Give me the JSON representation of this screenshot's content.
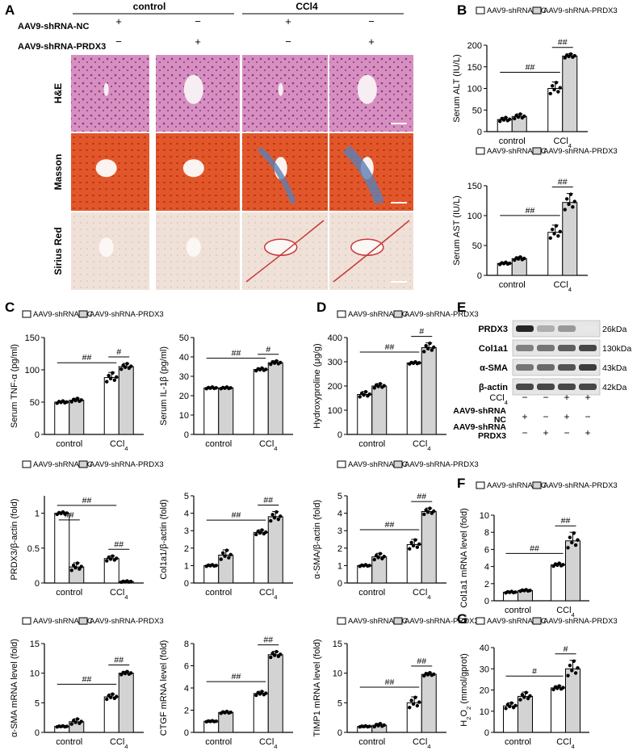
{
  "panel_letters": [
    "A",
    "B",
    "C",
    "D",
    "E",
    "F",
    "G"
  ],
  "panel_a": {
    "group_headers": [
      "control",
      "CCl4"
    ],
    "row1_label": "AAV9-shRNA-NC",
    "row2_label": "AAV9-shRNA-PRDX3",
    "row1_signs": [
      "+",
      "−",
      "+",
      "−"
    ],
    "row2_signs": [
      "−",
      "+",
      "−",
      "+"
    ],
    "stains": [
      "H&E",
      "Masson",
      "Sirius Red"
    ]
  },
  "legend": {
    "nc": "AAV9-shRNA-NC",
    "prdx3": "AAV9-shRNA-PRDX3"
  },
  "colors": {
    "nc": "#ffffff",
    "prdx3": "#d3d3d3",
    "sig": "#000000"
  },
  "chart_data": [
    {
      "id": "alt",
      "type": "bar",
      "ylabel": "Serum ALT (IU/L)",
      "categories": [
        "control",
        "CCl4"
      ],
      "ylim": [
        0,
        200
      ],
      "yticks": [
        0,
        50,
        100,
        150,
        200
      ],
      "series": [
        {
          "name": "AAV9-shRNA-NC",
          "values": [
            28,
            100
          ],
          "errors": [
            5,
            15
          ]
        },
        {
          "name": "AAV9-shRNA-PRDX3",
          "values": [
            35,
            175
          ],
          "errors": [
            6,
            5
          ]
        }
      ],
      "significance": [
        "##",
        "##"
      ]
    },
    {
      "id": "ast",
      "type": "bar",
      "ylabel": "Serum AST (IU/L)",
      "categories": [
        "control",
        "CCl4"
      ],
      "ylim": [
        0,
        150
      ],
      "yticks": [
        0,
        50,
        100,
        150
      ],
      "series": [
        {
          "name": "AAV9-shRNA-NC",
          "values": [
            20,
            72
          ],
          "errors": [
            2,
            12
          ]
        },
        {
          "name": "AAV9-shRNA-PRDX3",
          "values": [
            28,
            122
          ],
          "errors": [
            3,
            15
          ]
        }
      ],
      "significance": [
        "##",
        "##"
      ]
    },
    {
      "id": "tnf",
      "type": "bar",
      "ylabel": "Serum TNF-α (pg/ml)",
      "categories": [
        "control",
        "CCl4"
      ],
      "ylim": [
        0,
        150
      ],
      "yticks": [
        0,
        50,
        100,
        150
      ],
      "series": [
        {
          "name": "AAV9-shRNA-NC",
          "values": [
            50,
            88
          ],
          "errors": [
            2,
            8
          ]
        },
        {
          "name": "AAV9-shRNA-PRDX3",
          "values": [
            53,
            105
          ],
          "errors": [
            3,
            5
          ]
        }
      ],
      "significance": [
        "##",
        "#"
      ]
    },
    {
      "id": "il1b",
      "type": "bar",
      "ylabel": "Serum IL-1β (pg/ml)",
      "categories": [
        "control",
        "CCl4"
      ],
      "ylim": [
        0,
        50
      ],
      "yticks": [
        0,
        10,
        20,
        30,
        40,
        50
      ],
      "series": [
        {
          "name": "AAV9-shRNA-NC",
          "values": [
            24,
            33.5
          ],
          "errors": [
            0.5,
            0.8
          ]
        },
        {
          "name": "AAV9-shRNA-PRDX3",
          "values": [
            24,
            37
          ],
          "errors": [
            0.5,
            1
          ]
        }
      ],
      "significance": [
        "##",
        "#"
      ]
    },
    {
      "id": "hyp",
      "type": "bar",
      "ylabel": "Hydroxyproline (μg/g)",
      "categories": [
        "control",
        "CCl4"
      ],
      "ylim": [
        0,
        400
      ],
      "yticks": [
        0,
        100,
        200,
        300,
        400
      ],
      "series": [
        {
          "name": "AAV9-shRNA-NC",
          "values": [
            165,
            295
          ],
          "errors": [
            12,
            5
          ]
        },
        {
          "name": "AAV9-shRNA-PRDX3",
          "values": [
            200,
            358
          ],
          "errors": [
            10,
            20
          ]
        }
      ],
      "significance": [
        "##",
        "#"
      ]
    },
    {
      "id": "prdx3",
      "type": "bar",
      "ylabel": "PRDX3/β-actin (fold)",
      "categories": [
        "control",
        "CCl4"
      ],
      "ylim": [
        0,
        1.25
      ],
      "yticks": [
        0.0,
        0.5,
        1.0
      ],
      "series": [
        {
          "name": "AAV9-shRNA-NC",
          "values": [
            1.0,
            0.35
          ],
          "errors": [
            0.02,
            0.04
          ]
        },
        {
          "name": "AAV9-shRNA-PRDX3",
          "values": [
            0.23,
            0.02
          ],
          "errors": [
            0.06,
            0.01
          ]
        }
      ],
      "significance": [
        "##",
        "##",
        "##"
      ]
    },
    {
      "id": "col1a1",
      "type": "bar",
      "ylabel": "Col1a1/β-actin (fold)",
      "categories": [
        "control",
        "CCl4"
      ],
      "ylim": [
        0,
        5
      ],
      "yticks": [
        0,
        1,
        2,
        3,
        4,
        5
      ],
      "series": [
        {
          "name": "AAV9-shRNA-NC",
          "values": [
            1.0,
            2.9
          ],
          "errors": [
            0.05,
            0.15
          ]
        },
        {
          "name": "AAV9-shRNA-PRDX3",
          "values": [
            1.6,
            3.8
          ],
          "errors": [
            0.3,
            0.3
          ]
        }
      ],
      "significance": [
        "##",
        "##"
      ]
    },
    {
      "id": "asma",
      "type": "bar",
      "ylabel": "α-SMA/β-actin (fold)",
      "categories": [
        "control",
        "CCl4"
      ],
      "ylim": [
        0,
        5
      ],
      "yticks": [
        0,
        1,
        2,
        3,
        4,
        5
      ],
      "series": [
        {
          "name": "AAV9-shRNA-NC",
          "values": [
            1.0,
            2.2
          ],
          "errors": [
            0.05,
            0.3
          ]
        },
        {
          "name": "AAV9-shRNA-PRDX3",
          "values": [
            1.5,
            4.1
          ],
          "errors": [
            0.2,
            0.2
          ]
        }
      ],
      "significance": [
        "##",
        "##"
      ]
    },
    {
      "id": "col1a1_mrna",
      "type": "bar",
      "ylabel": "Col1a1 mRNA level (fold)",
      "categories": [
        "control",
        "CCl4"
      ],
      "ylim": [
        0,
        10
      ],
      "yticks": [
        0,
        2,
        4,
        6,
        8,
        10
      ],
      "series": [
        {
          "name": "AAV9-shRNA-NC",
          "values": [
            1.0,
            4.2
          ],
          "errors": [
            0.1,
            0.2
          ]
        },
        {
          "name": "AAV9-shRNA-PRDX3",
          "values": [
            1.2,
            7.0
          ],
          "errors": [
            0.1,
            1.0
          ]
        }
      ],
      "significance": [
        "##",
        "##"
      ]
    },
    {
      "id": "asma_mrna",
      "type": "bar",
      "ylabel": "α-SMA mRNA level (fold)",
      "categories": [
        "control",
        "CCl4"
      ],
      "ylim": [
        0,
        15
      ],
      "yticks": [
        0,
        5,
        10,
        15
      ],
      "series": [
        {
          "name": "AAV9-shRNA-NC",
          "values": [
            1.0,
            6.0
          ],
          "errors": [
            0.1,
            0.5
          ]
        },
        {
          "name": "AAV9-shRNA-PRDX3",
          "values": [
            1.8,
            10.0
          ],
          "errors": [
            0.5,
            0.3
          ]
        }
      ],
      "significance": [
        "##",
        "##"
      ]
    },
    {
      "id": "ctgf_mrna",
      "type": "bar",
      "ylabel": "CTGF mRNA level (fold)",
      "categories": [
        "control",
        "CCl4"
      ],
      "ylim": [
        0,
        8
      ],
      "yticks": [
        0,
        2,
        4,
        6,
        8
      ],
      "series": [
        {
          "name": "AAV9-shRNA-NC",
          "values": [
            1.0,
            3.5
          ],
          "errors": [
            0.05,
            0.2
          ]
        },
        {
          "name": "AAV9-shRNA-PRDX3",
          "values": [
            1.8,
            7.0
          ],
          "errors": [
            0.1,
            0.3
          ]
        }
      ],
      "significance": [
        "##",
        "##"
      ]
    },
    {
      "id": "timp1_mrna",
      "type": "bar",
      "ylabel": "TIMP1 mRNA level (fold)",
      "categories": [
        "control",
        "CCl4"
      ],
      "ylim": [
        0,
        15
      ],
      "yticks": [
        0,
        5,
        10,
        15
      ],
      "series": [
        {
          "name": "AAV9-shRNA-NC",
          "values": [
            1.0,
            5.0
          ],
          "errors": [
            0.1,
            1.0
          ]
        },
        {
          "name": "AAV9-shRNA-PRDX3",
          "values": [
            1.2,
            9.8
          ],
          "errors": [
            0.3,
            0.3
          ]
        }
      ],
      "significance": [
        "##",
        "##"
      ]
    },
    {
      "id": "h2o2",
      "type": "bar",
      "ylabel": "H2O2 (mmol/gprot)",
      "categories": [
        "control",
        "CCl4"
      ],
      "ylim": [
        0,
        40
      ],
      "yticks": [
        0,
        10,
        20,
        30,
        40
      ],
      "series": [
        {
          "name": "AAV9-shRNA-NC",
          "values": [
            12.5,
            21
          ],
          "errors": [
            1.5,
            1
          ]
        },
        {
          "name": "AAV9-shRNA-PRDX3",
          "values": [
            17,
            30
          ],
          "errors": [
            2,
            4
          ]
        }
      ],
      "significance": [
        "#",
        "#"
      ]
    }
  ],
  "western": {
    "proteins": [
      {
        "name": "PRDX3",
        "kda": "26kDa",
        "intensity": [
          0.95,
          0.35,
          0.45,
          0.1
        ]
      },
      {
        "name": "Col1a1",
        "kda": "130kDa",
        "intensity": [
          0.55,
          0.6,
          0.7,
          0.8
        ]
      },
      {
        "name": "α-SMA",
        "kda": "43kDa",
        "intensity": [
          0.6,
          0.65,
          0.75,
          0.85
        ]
      },
      {
        "name": "β-actin",
        "kda": "42kDa",
        "intensity": [
          0.8,
          0.8,
          0.8,
          0.8
        ]
      }
    ],
    "conditions": [
      {
        "label": "CCl4",
        "signs": [
          "−",
          "−",
          "+",
          "+"
        ]
      },
      {
        "label": "AAV9-shRNA NC",
        "signs": [
          "+",
          "−",
          "+",
          "−"
        ]
      },
      {
        "label": "AAV9-shRNA PRDX3",
        "signs": [
          "−",
          "+",
          "−",
          "+"
        ]
      }
    ]
  }
}
